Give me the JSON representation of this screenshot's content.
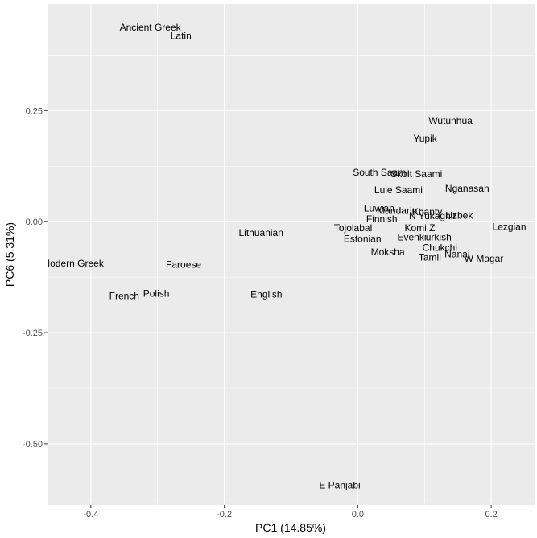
{
  "chart_data": {
    "type": "scatter",
    "xlabel": "PC1 (14.85%)",
    "ylabel": "PC6 (5.31%)",
    "xlim": [
      -0.465,
      0.265
    ],
    "ylim": [
      -0.638,
      0.49
    ],
    "x_ticks": [
      -0.4,
      -0.2,
      0.0,
      0.2
    ],
    "x_tick_labels": [
      "-0.4",
      "-0.2",
      "0.0",
      "0.2"
    ],
    "y_ticks": [
      -0.5,
      -0.25,
      0.0,
      0.25
    ],
    "y_tick_labels": [
      "-0.50",
      "-0.25",
      "0.00",
      "0.25"
    ],
    "grid": true,
    "colors": {
      "panel": "#ebebeb",
      "grid_major": "#ffffff",
      "text": "#000000",
      "tick_text": "#4d4d4d"
    },
    "points": [
      {
        "label": "Ancient Greek",
        "x": -0.311,
        "y": 0.437
      },
      {
        "label": "Latin",
        "x": -0.265,
        "y": 0.418
      },
      {
        "label": "Wutunhua",
        "x": 0.139,
        "y": 0.227
      },
      {
        "label": "Yupik",
        "x": 0.101,
        "y": 0.187
      },
      {
        "label": "South Saami",
        "x": 0.034,
        "y": 0.111
      },
      {
        "label": "Skolt Saami",
        "x": 0.088,
        "y": 0.107
      },
      {
        "label": "Lule Saami",
        "x": 0.061,
        "y": 0.071
      },
      {
        "label": "Nganasan",
        "x": 0.164,
        "y": 0.075
      },
      {
        "label": "Luwian",
        "x": 0.032,
        "y": 0.03
      },
      {
        "label": "Mandarin",
        "x": 0.059,
        "y": 0.025
      },
      {
        "label": "Khanty",
        "x": 0.104,
        "y": 0.022
      },
      {
        "label": "N Yukaghir",
        "x": 0.112,
        "y": 0.013
      },
      {
        "label": "Uzbek",
        "x": 0.152,
        "y": 0.014
      },
      {
        "label": "Lezgian",
        "x": 0.227,
        "y": -0.011
      },
      {
        "label": "Finnish",
        "x": 0.036,
        "y": 0.006
      },
      {
        "label": "Tojolabal",
        "x": -0.007,
        "y": -0.014
      },
      {
        "label": "Komi Z",
        "x": 0.093,
        "y": -0.014
      },
      {
        "label": "Lithuanian",
        "x": -0.145,
        "y": -0.025
      },
      {
        "label": "Estonian",
        "x": 0.007,
        "y": -0.039
      },
      {
        "label": "Evenki",
        "x": 0.081,
        "y": -0.035
      },
      {
        "label": "Turkish",
        "x": 0.117,
        "y": -0.035
      },
      {
        "label": "Chukchi",
        "x": 0.123,
        "y": -0.059
      },
      {
        "label": "Moksha",
        "x": 0.045,
        "y": -0.069
      },
      {
        "label": "Tamil",
        "x": 0.108,
        "y": -0.08
      },
      {
        "label": "Nanai",
        "x": 0.149,
        "y": -0.073
      },
      {
        "label": "W Magar",
        "x": 0.189,
        "y": -0.083
      },
      {
        "label": "Modern Greek",
        "x": -0.427,
        "y": -0.094
      },
      {
        "label": "Faroese",
        "x": -0.261,
        "y": -0.097
      },
      {
        "label": "French",
        "x": -0.35,
        "y": -0.167
      },
      {
        "label": "Polish",
        "x": -0.302,
        "y": -0.162
      },
      {
        "label": "English",
        "x": -0.137,
        "y": -0.164
      },
      {
        "label": "E Panjabi",
        "x": -0.027,
        "y": -0.594
      }
    ]
  }
}
